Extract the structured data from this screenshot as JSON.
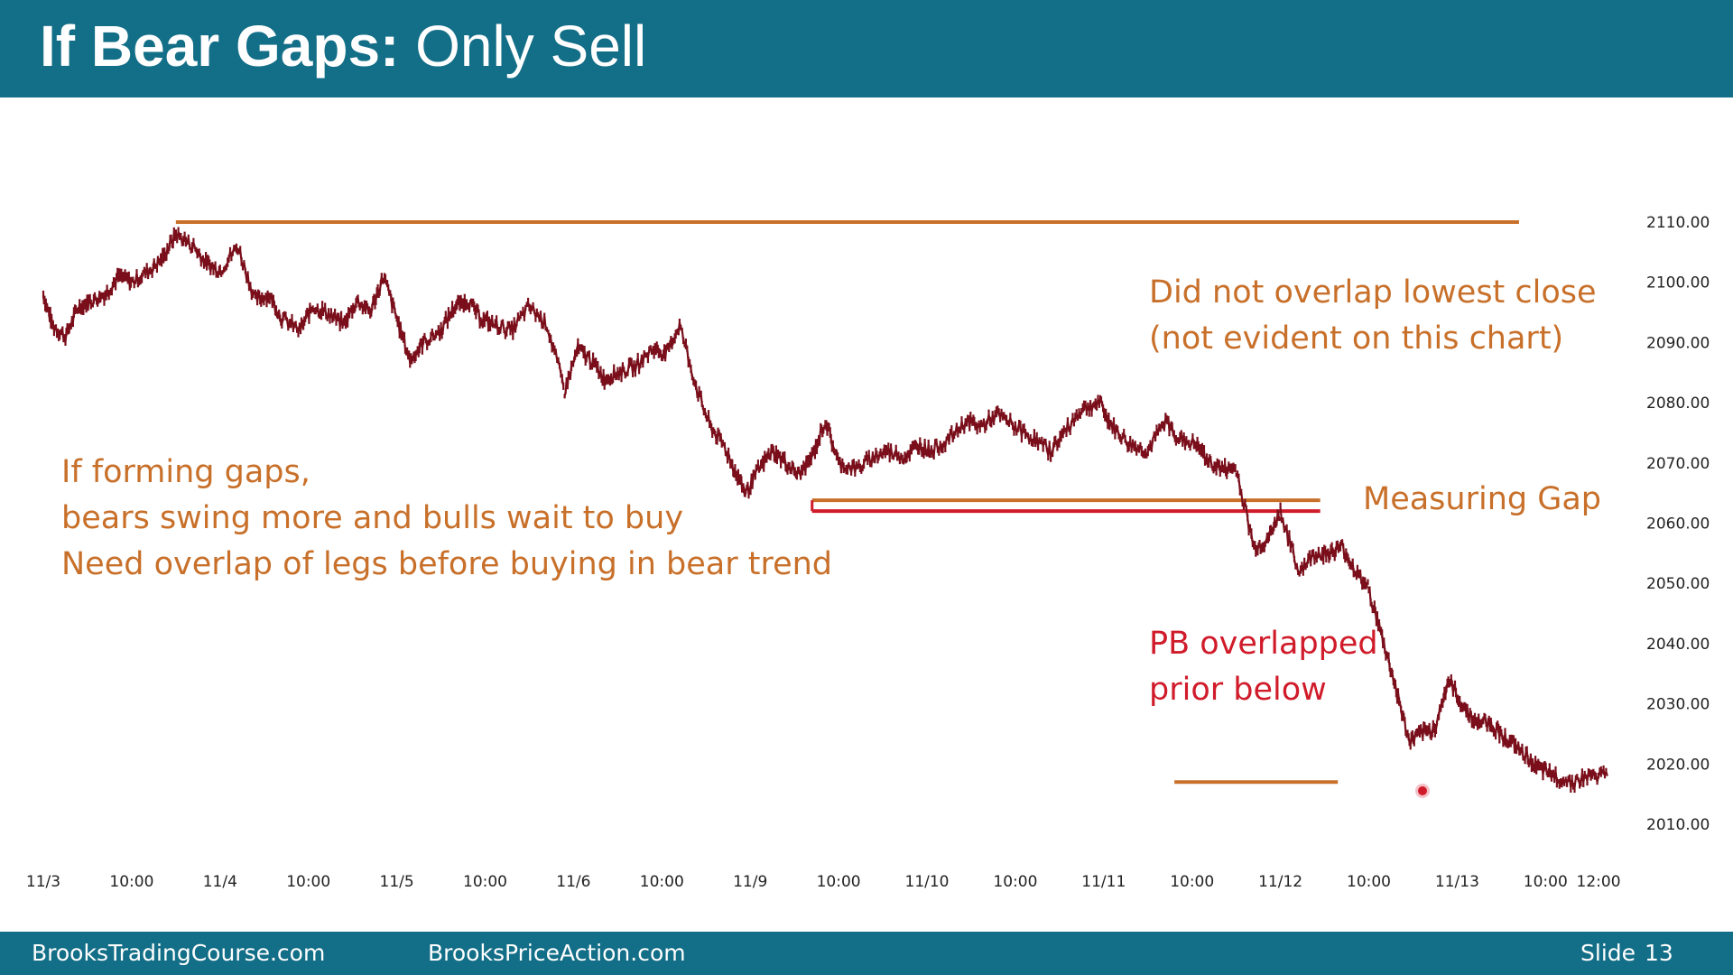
{
  "header": {
    "title_bold": "If Bear Gaps:",
    "title_rest": " Only Sell"
  },
  "footer": {
    "left": "BrooksTradingCourse.com",
    "middle": "BrooksPriceAction.com",
    "slide_label": "Slide",
    "slide_number": "13"
  },
  "colors": {
    "header_bg": "#136e87",
    "bar_color": "#7a0f1b",
    "orange": "#c8702a",
    "red": "#d01b2a"
  },
  "annotations": {
    "top_right": [
      "Did not overlap lowest close",
      "(not evident on this chart)"
    ],
    "left": [
      "If forming gaps,",
      "bears swing more and bulls wait to buy",
      "Need overlap of legs before buying in bear trend"
    ],
    "measuring_gap": "Measuring Gap",
    "pb_overlap": [
      "PB overlapped",
      "prior below"
    ]
  },
  "chart_data": {
    "type": "line",
    "title": "",
    "xlabel": "",
    "ylabel": "",
    "ylim": [
      2005,
      2118
    ],
    "y_ticks": [
      "2110.00",
      "2100.00",
      "2090.00",
      "2080.00",
      "2070.00",
      "2060.00",
      "2050.00",
      "2040.00",
      "2030.00",
      "2020.00",
      "2010.00"
    ],
    "y_tick_values": [
      2110,
      2100,
      2090,
      2080,
      2070,
      2060,
      2050,
      2040,
      2030,
      2020,
      2010
    ],
    "x_ticks": [
      "11/3",
      "10:00",
      "11/4",
      "10:00",
      "11/5",
      "10:00",
      "11/6",
      "10:00",
      "11/9",
      "10:00",
      "11/10",
      "10:00",
      "11/11",
      "10:00",
      "11/12",
      "10:00",
      "11/13",
      "10:00",
      "12:00"
    ],
    "x_tick_values": [
      0,
      1,
      2,
      3,
      4,
      5,
      6,
      7,
      8,
      9,
      10,
      11,
      12,
      13,
      14,
      15,
      16,
      17,
      17.6
    ],
    "grid": false,
    "series": [
      {
        "x": [
          0,
          0.1,
          0.25,
          0.4,
          0.55,
          0.7,
          0.85,
          1.0,
          1.2,
          1.35,
          1.5,
          1.7,
          1.85,
          2.0,
          2.2,
          2.4,
          2.55,
          2.7,
          2.9,
          3.05,
          3.2,
          3.4,
          3.55,
          3.7,
          3.85,
          4.0,
          4.15,
          4.3,
          4.5,
          4.65,
          4.8,
          4.95,
          5.1,
          5.3,
          5.5,
          5.7,
          5.9,
          6.05,
          6.2,
          6.35,
          6.5,
          6.7,
          6.9,
          7.05,
          7.2,
          7.4,
          7.55,
          7.7,
          7.85,
          7.95,
          8.1,
          8.25,
          8.4,
          8.55,
          8.7,
          8.85,
          9.0,
          9.2,
          9.4,
          9.55,
          9.75,
          9.9,
          10.05,
          10.25,
          10.45,
          10.6,
          10.8,
          11.0,
          11.2,
          11.4,
          11.55,
          11.75,
          11.95,
          12.1,
          12.3,
          12.5,
          12.7,
          12.85,
          13.05,
          13.2,
          13.35,
          13.5,
          13.7,
          13.85,
          14.0,
          14.2,
          14.4,
          14.55,
          14.7,
          14.85,
          15.0,
          15.15,
          15.3,
          15.45,
          15.6,
          15.75,
          15.9,
          16.05,
          16.2,
          16.35,
          16.5,
          16.65,
          16.8,
          16.95,
          17.1,
          17.3,
          17.5,
          17.7
        ],
        "values": [
          2098,
          2093,
          2091,
          2096,
          2097,
          2098,
          2101,
          2100,
          2102,
          2104,
          2108,
          2106,
          2103,
          2102,
          2106,
          2097,
          2098,
          2094,
          2092,
          2096,
          2095,
          2093,
          2097,
          2095,
          2101,
          2094,
          2087,
          2090,
          2092,
          2096,
          2097,
          2094,
          2093,
          2092,
          2096,
          2093,
          2082,
          2089,
          2087,
          2084,
          2085,
          2086,
          2089,
          2088,
          2093,
          2082,
          2076,
          2073,
          2068,
          2065,
          2069,
          2072,
          2070,
          2068,
          2071,
          2077,
          2070,
          2069,
          2071,
          2072,
          2071,
          2073,
          2072,
          2074,
          2077,
          2076,
          2078,
          2076,
          2074,
          2072,
          2075,
          2079,
          2080,
          2076,
          2073,
          2072,
          2077,
          2074,
          2073,
          2070,
          2069,
          2069,
          2056,
          2057,
          2062,
          2052,
          2055,
          2055,
          2056,
          2052,
          2049,
          2041,
          2033,
          2024,
          2025,
          2026,
          2034,
          2030,
          2027,
          2027,
          2025,
          2023,
          2021,
          2019,
          2018,
          2017,
          2018,
          2018
        ]
      }
    ],
    "lines": [
      {
        "label": "top resistance",
        "y": 2110,
        "x_from": 1.5,
        "x_to": 16.7,
        "color": "orange"
      },
      {
        "label": "gap upper",
        "y": 2063.8,
        "x_from": 8.7,
        "x_to": 14.45,
        "color": "orange"
      },
      {
        "label": "gap lower",
        "y": 2062,
        "x_from": 8.7,
        "x_to": 14.45,
        "color": "red"
      },
      {
        "label": "bottom line",
        "y": 2017,
        "x_from": 12.8,
        "x_to": 14.65,
        "color": "orange"
      }
    ]
  }
}
